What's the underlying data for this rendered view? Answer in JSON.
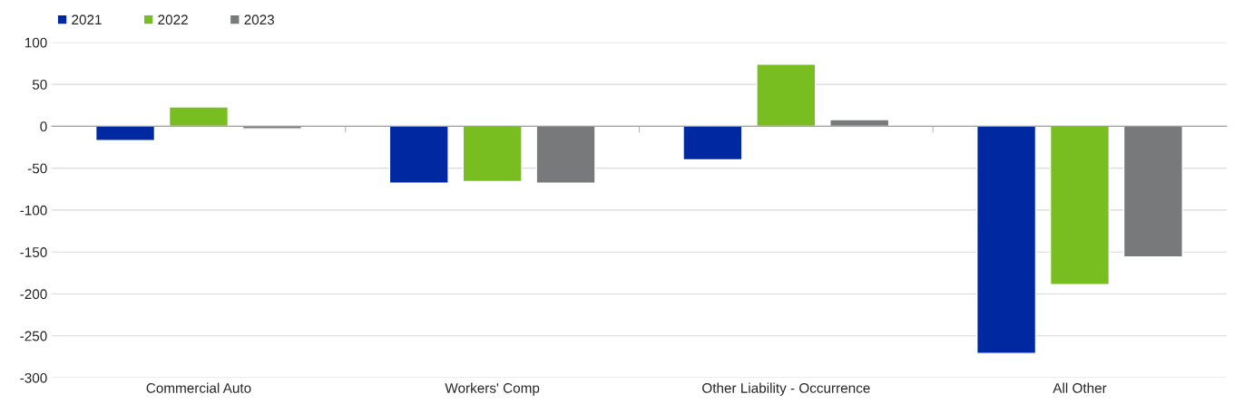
{
  "chart_data": {
    "type": "bar",
    "categories": [
      "Commercial Auto",
      "Workers' Comp",
      "Other Liability - Occurrence",
      "All Other"
    ],
    "series": [
      {
        "name": "2021",
        "color": "#0028a0",
        "values": [
          -17,
          -68,
          -40,
          -271
        ]
      },
      {
        "name": "2022",
        "color": "#78be20",
        "values": [
          23,
          -66,
          74,
          -189
        ]
      },
      {
        "name": "2023",
        "color": "#77797b",
        "values": [
          -3,
          -68,
          8,
          -156
        ]
      }
    ],
    "ylim": [
      -300,
      100
    ],
    "yticks": [
      -300,
      -250,
      -200,
      -150,
      -100,
      -50,
      0,
      50,
      100
    ],
    "grid": "y",
    "legend": "top left"
  }
}
